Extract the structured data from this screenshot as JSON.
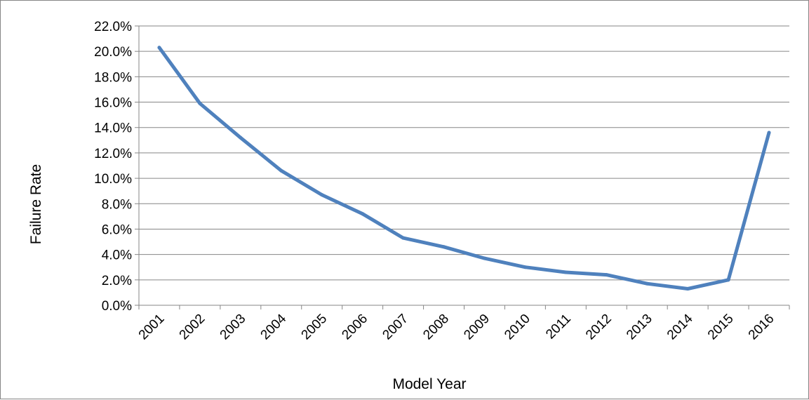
{
  "chart_data": {
    "type": "line",
    "title": "",
    "xlabel": "Model Year",
    "ylabel": "Failure Rate",
    "categories": [
      "2001",
      "2002",
      "2003",
      "2004",
      "2005",
      "2006",
      "2007",
      "2008",
      "2009",
      "2010",
      "2011",
      "2012",
      "2013",
      "2014",
      "2015",
      "2016"
    ],
    "series": [
      {
        "values": [
          20.3,
          15.9,
          13.2,
          10.6,
          8.7,
          7.2,
          5.3,
          4.6,
          3.7,
          3.0,
          2.6,
          2.4,
          1.7,
          1.3,
          2.0,
          13.6
        ]
      }
    ],
    "ylim": [
      0,
      22
    ],
    "ytick_labels": [
      "0.0%",
      "2.0%",
      "4.0%",
      "6.0%",
      "8.0%",
      "10.0%",
      "12.0%",
      "14.0%",
      "16.0%",
      "18.0%",
      "20.0%",
      "22.0%"
    ],
    "grid": "horizontal",
    "legend": "none",
    "colors": {
      "line": "#4f81bd",
      "grid": "#868686",
      "axis": "#868686"
    }
  }
}
